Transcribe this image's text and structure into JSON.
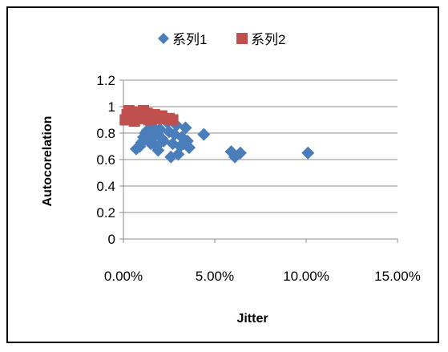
{
  "chart_data": {
    "type": "scatter",
    "title": "",
    "xlabel": "Jitter",
    "ylabel": "Autocorelation",
    "xlim": [
      0,
      0.15
    ],
    "ylim": [
      0,
      1.2
    ],
    "x_ticks": [
      0,
      0.05,
      0.1,
      0.15
    ],
    "x_tick_labels": [
      "0.00%",
      "5.00%",
      "10.00%",
      "15.00%"
    ],
    "y_ticks": [
      0,
      0.2,
      0.4,
      0.6,
      0.8,
      1.0,
      1.2
    ],
    "y_tick_labels": [
      "0",
      "0.2",
      "0.4",
      "0.6",
      "0.8",
      "1",
      "1.2"
    ],
    "grid": "horizontal",
    "legend_position": "top",
    "series": [
      {
        "name": "系列1",
        "color": "#4a7ebb",
        "marker": "diamond",
        "points": [
          [
            0.007,
            0.68
          ],
          [
            0.009,
            0.7
          ],
          [
            0.01,
            0.73
          ],
          [
            0.011,
            0.77
          ],
          [
            0.012,
            0.8
          ],
          [
            0.013,
            0.82
          ],
          [
            0.014,
            0.75
          ],
          [
            0.015,
            0.72
          ],
          [
            0.016,
            0.85
          ],
          [
            0.017,
            0.78
          ],
          [
            0.018,
            0.7
          ],
          [
            0.019,
            0.67
          ],
          [
            0.02,
            0.83
          ],
          [
            0.021,
            0.76
          ],
          [
            0.022,
            0.74
          ],
          [
            0.024,
            0.88
          ],
          [
            0.025,
            0.81
          ],
          [
            0.026,
            0.62
          ],
          [
            0.027,
            0.72
          ],
          [
            0.028,
            0.79
          ],
          [
            0.029,
            0.86
          ],
          [
            0.03,
            0.64
          ],
          [
            0.031,
            0.7
          ],
          [
            0.032,
            0.77
          ],
          [
            0.033,
            0.72
          ],
          [
            0.034,
            0.84
          ],
          [
            0.035,
            0.74
          ],
          [
            0.036,
            0.69
          ],
          [
            0.044,
            0.79
          ],
          [
            0.059,
            0.66
          ],
          [
            0.061,
            0.62
          ],
          [
            0.064,
            0.65
          ],
          [
            0.101,
            0.65
          ]
        ]
      },
      {
        "name": "系列2",
        "color": "#c0504d",
        "marker": "square",
        "points": [
          [
            0.001,
            0.9
          ],
          [
            0.002,
            0.94
          ],
          [
            0.003,
            0.97
          ],
          [
            0.004,
            0.92
          ],
          [
            0.005,
            0.95
          ],
          [
            0.006,
            0.89
          ],
          [
            0.007,
            0.93
          ],
          [
            0.008,
            0.96
          ],
          [
            0.009,
            0.91
          ],
          [
            0.01,
            0.94
          ],
          [
            0.011,
            0.97
          ],
          [
            0.012,
            0.92
          ],
          [
            0.013,
            0.95
          ],
          [
            0.014,
            0.9
          ],
          [
            0.015,
            0.93
          ],
          [
            0.017,
            0.94
          ],
          [
            0.019,
            0.91
          ],
          [
            0.021,
            0.93
          ],
          [
            0.025,
            0.91
          ],
          [
            0.027,
            0.9
          ]
        ]
      }
    ]
  }
}
